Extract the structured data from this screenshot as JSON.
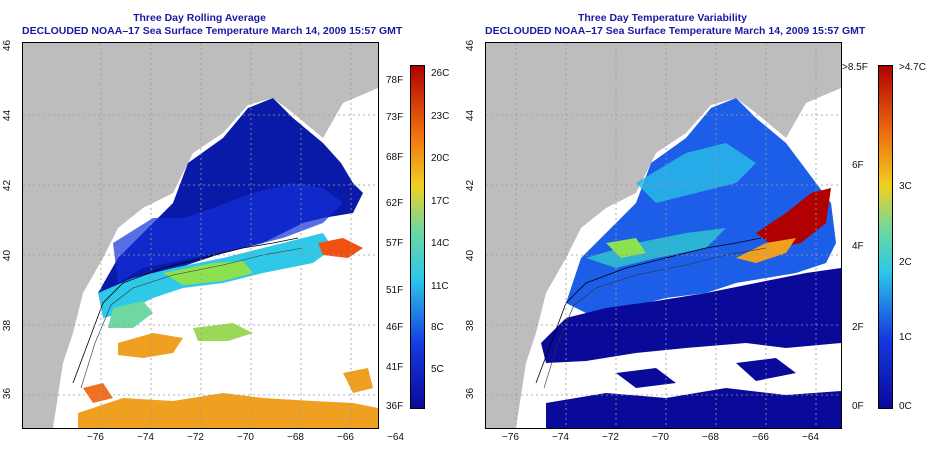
{
  "left_panel": {
    "title": "Three Day Rolling Average",
    "subtitle": "DECLOUDED NOAA–17 Sea Surface Temperature March 14, 2009 15:57 GMT",
    "x_ticks": [
      "−76",
      "−74",
      "−72",
      "−70",
      "−68",
      "−66",
      "−64"
    ],
    "y_ticks": [
      "46",
      "44",
      "42",
      "40",
      "38",
      "36"
    ],
    "colorbar_left_labels": [
      "78F",
      "73F",
      "68F",
      "62F",
      "57F",
      "51F",
      "46F",
      "41F",
      "36F"
    ],
    "colorbar_right_labels": [
      "26C",
      "23C",
      "20C",
      "17C",
      "14C",
      "11C",
      "8C",
      "5C"
    ]
  },
  "right_panel": {
    "title": "Three Day Temperature Variability",
    "subtitle": "DECLOUDED NOAA–17 Sea Surface Temperature March 14, 2009 15:57 GMT",
    "x_ticks": [
      "−76",
      "−74",
      "−72",
      "−70",
      "−68",
      "−66",
      "−64"
    ],
    "y_ticks": [
      "46",
      "44",
      "42",
      "40",
      "38",
      "36"
    ],
    "colorbar_left_labels": [
      ">8.5F",
      "6F",
      "4F",
      "2F",
      "0F"
    ],
    "colorbar_right_labels": [
      ">4.7C",
      "3C",
      "2C",
      "1C",
      "0C"
    ]
  },
  "colors": {
    "title_blue": "#1a1aa0",
    "land_gray": "#bdbdbd",
    "cold_navy": "#0a0a9a",
    "deep_blue": "#1430d8",
    "warm_orange": "#f0a020",
    "hot_red": "#b00000"
  }
}
